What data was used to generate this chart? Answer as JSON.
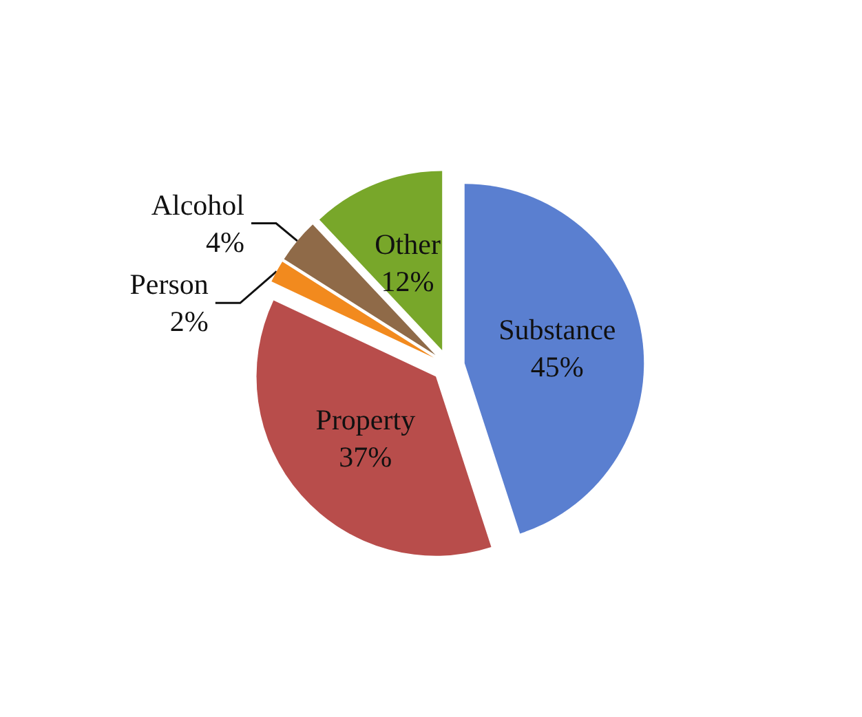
{
  "chart_data": {
    "type": "pie",
    "categories": [
      "Substance",
      "Property",
      "Person",
      "Alcohol",
      "Other"
    ],
    "values": [
      45,
      37,
      2,
      4,
      12
    ],
    "value_labels": [
      "45%",
      "37%",
      "2%",
      "4%",
      "12%"
    ],
    "colors": [
      "#5a7fd0",
      "#b84d4b",
      "#f28a1e",
      "#8f6a48",
      "#78a72a"
    ],
    "legend": false
  }
}
